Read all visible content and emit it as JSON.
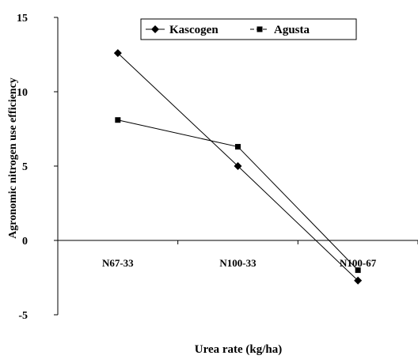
{
  "chart_data": {
    "type": "line",
    "categories": [
      "N67-33",
      "N100-33",
      "N100-67"
    ],
    "series": [
      {
        "name": "Kascogen",
        "marker": "diamond",
        "line_style": "solid",
        "values": [
          12.6,
          5.0,
          -2.7
        ]
      },
      {
        "name": "Agusta",
        "marker": "square",
        "line_style": "dashed",
        "values": [
          8.1,
          6.3,
          -2.0
        ]
      }
    ],
    "ylabel": "Agronomic nitrogen use efficiency",
    "xlabel": "Urea rate (kg/ha)",
    "ylim": [
      -5,
      15
    ],
    "yticks": [
      -5,
      0,
      5,
      10,
      15
    ],
    "grid": false,
    "legend_position": "top-center",
    "colors": {
      "line": "#000000",
      "background": "#ffffff"
    }
  }
}
